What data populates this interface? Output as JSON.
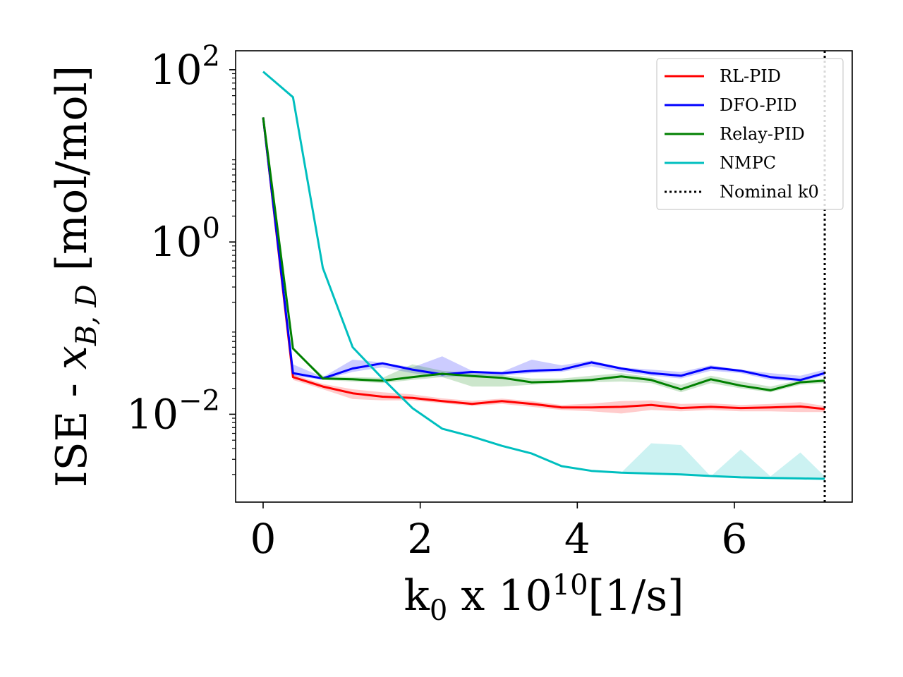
{
  "chart_data": {
    "type": "line",
    "xlabel_main": "k",
    "xlabel_sub": "0",
    "xlabel_mid": " x 10",
    "xlabel_sup": "10",
    "xlabel_tail": "[1/s]",
    "ylabel_prefix": "ISE - ",
    "ylabel_var": "x",
    "ylabel_sub": "B, D",
    "ylabel_suffix": " [mol/mol]",
    "xlim": [
      -0.35,
      7.5
    ],
    "ylim_log10": [
      -3.02,
      2.22
    ],
    "yscale": "log",
    "x_ticks": [
      {
        "value": 0,
        "label": "0"
      },
      {
        "value": 2,
        "label": "2"
      },
      {
        "value": 4,
        "label": "4"
      },
      {
        "value": 6,
        "label": "6"
      }
    ],
    "y_ticks": [
      {
        "exp": 2,
        "base": "10",
        "sup": "2"
      },
      {
        "exp": 0,
        "base": "10",
        "sup": "0"
      },
      {
        "exp": -2,
        "base": "10",
        "sup": "−2"
      }
    ],
    "legend_position": "top-right",
    "nominal_k0": {
      "name": "Nominal k0",
      "x": 7.15,
      "color": "#000000"
    },
    "x": [
      0,
      0.38,
      0.76,
      1.14,
      1.52,
      1.9,
      2.28,
      2.66,
      3.04,
      3.42,
      3.8,
      4.18,
      4.56,
      4.94,
      5.32,
      5.7,
      6.08,
      6.46,
      6.84,
      7.15
    ],
    "series": [
      {
        "name": "RL-PID",
        "color": "#ff0000",
        "values": [
          28,
          0.027,
          0.021,
          0.0175,
          0.016,
          0.0155,
          0.0142,
          0.0132,
          0.0142,
          0.0132,
          0.012,
          0.012,
          0.0122,
          0.0128,
          0.0118,
          0.0122,
          0.0118,
          0.012,
          0.0123,
          0.0115
        ],
        "band_low": [
          28,
          0.025,
          0.0195,
          0.015,
          0.0145,
          0.0145,
          0.0134,
          0.0125,
          0.0132,
          0.0122,
          0.0112,
          0.0108,
          0.0102,
          0.0112,
          0.0108,
          0.0112,
          0.0108,
          0.0108,
          0.0106,
          0.0106
        ],
        "band_high": [
          28,
          0.029,
          0.0225,
          0.0195,
          0.018,
          0.017,
          0.0153,
          0.0143,
          0.0152,
          0.0142,
          0.0128,
          0.0133,
          0.0142,
          0.0145,
          0.0132,
          0.0134,
          0.0128,
          0.0132,
          0.0138,
          0.0125
        ]
      },
      {
        "name": "DFO-PID",
        "color": "#0000ff",
        "values": [
          28,
          0.03,
          0.026,
          0.034,
          0.039,
          0.033,
          0.029,
          0.031,
          0.03,
          0.032,
          0.033,
          0.04,
          0.034,
          0.03,
          0.028,
          0.035,
          0.032,
          0.027,
          0.025,
          0.03
        ],
        "band_low": [
          28,
          0.028,
          0.025,
          0.031,
          0.035,
          0.03,
          0.027,
          0.028,
          0.028,
          0.03,
          0.031,
          0.036,
          0.031,
          0.028,
          0.026,
          0.032,
          0.03,
          0.025,
          0.024,
          0.028
        ],
        "band_high": [
          28,
          0.038,
          0.027,
          0.043,
          0.04,
          0.035,
          0.047,
          0.032,
          0.031,
          0.043,
          0.037,
          0.042,
          0.035,
          0.033,
          0.031,
          0.037,
          0.033,
          0.03,
          0.028,
          0.033
        ]
      },
      {
        "name": "Relay-PID",
        "color": "#008000",
        "values": [
          28,
          0.058,
          0.026,
          0.0255,
          0.0245,
          0.027,
          0.0295,
          0.0278,
          0.0265,
          0.0235,
          0.024,
          0.025,
          0.0275,
          0.025,
          0.0195,
          0.0255,
          0.0215,
          0.019,
          0.0235,
          0.0245
        ],
        "band_low": [
          28,
          0.058,
          0.025,
          0.024,
          0.023,
          0.025,
          0.027,
          0.021,
          0.021,
          0.022,
          0.023,
          0.0235,
          0.024,
          0.023,
          0.018,
          0.023,
          0.02,
          0.018,
          0.022,
          0.023
        ],
        "band_high": [
          28,
          0.058,
          0.028,
          0.027,
          0.0265,
          0.038,
          0.032,
          0.03,
          0.0285,
          0.026,
          0.026,
          0.028,
          0.03,
          0.027,
          0.022,
          0.028,
          0.024,
          0.021,
          0.025,
          0.026
        ]
      },
      {
        "name": "NMPC",
        "color": "#00bfbf",
        "values": [
          95,
          48,
          0.5,
          0.06,
          0.026,
          0.0118,
          0.0068,
          0.0055,
          0.0043,
          0.0035,
          0.0025,
          0.0022,
          0.0021,
          0.00205,
          0.002,
          0.00192,
          0.00185,
          0.00182,
          0.0018,
          0.00178
        ],
        "band_low": [
          95,
          48,
          0.5,
          0.06,
          0.026,
          0.0118,
          0.0068,
          0.0055,
          0.0043,
          0.0035,
          0.0025,
          0.0022,
          0.0021,
          0.00205,
          0.002,
          0.00192,
          0.00185,
          0.00182,
          0.0018,
          0.00178
        ],
        "band_high": [
          95,
          48,
          0.5,
          0.06,
          0.026,
          0.0118,
          0.0068,
          0.0055,
          0.0043,
          0.0035,
          0.0025,
          0.0022,
          0.0021,
          0.0046,
          0.0044,
          0.0019,
          0.0039,
          0.0019,
          0.0036,
          0.0019
        ]
      }
    ]
  }
}
